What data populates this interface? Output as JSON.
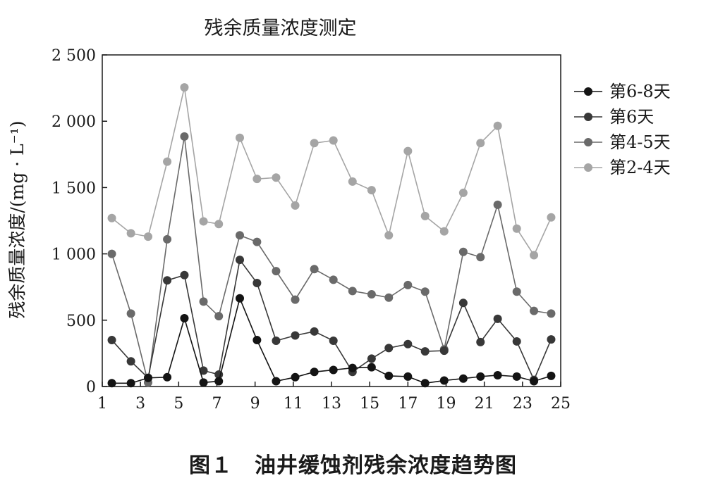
{
  "figure": {
    "caption": "图１　油井缓蚀剂残余浓度趋势图"
  },
  "chart_data": {
    "type": "line",
    "title": "残余质量浓度测定",
    "xlabel": "",
    "ylabel": "残余质量浓度/(mg · L⁻¹)",
    "xlim": [
      1,
      25
    ],
    "ylim": [
      0,
      2500
    ],
    "x_ticks": [
      "1",
      "3",
      "5",
      "7",
      "9",
      "11",
      "13",
      "15",
      "17",
      "19",
      "21",
      "23",
      "25"
    ],
    "y_ticks": [
      "0",
      "500",
      "1 000",
      "1 500",
      "2 000",
      "2 500"
    ],
    "legend_position": "right",
    "grid": false,
    "x": [
      1.5,
      2.5,
      3.4,
      4.4,
      5.3,
      6.3,
      7.1,
      8.2,
      9.1,
      10.1,
      11.1,
      12.1,
      13.1,
      14.1,
      15.1,
      16.0,
      17.0,
      17.9,
      18.9,
      19.9,
      20.8,
      21.7,
      22.7,
      23.6,
      24.5
    ],
    "series": [
      {
        "name": "第6-8天",
        "color": "#141414",
        "values": [
          25,
          25,
          65,
          70,
          515,
          30,
          40,
          665,
          350,
          40,
          70,
          110,
          125,
          140,
          145,
          80,
          75,
          25,
          45,
          60,
          75,
          85,
          75,
          40,
          80
        ]
      },
      {
        "name": "第6天",
        "color": "#383838",
        "values": [
          350,
          190,
          65,
          800,
          840,
          120,
          90,
          955,
          780,
          345,
          385,
          415,
          345,
          110,
          210,
          290,
          320,
          265,
          270,
          630,
          335,
          510,
          340,
          50,
          355
        ]
      },
      {
        "name": "第4-5天",
        "color": "#6a6a6a",
        "values": [
          1000,
          550,
          30,
          1110,
          1885,
          640,
          530,
          1140,
          1090,
          870,
          655,
          885,
          805,
          720,
          695,
          670,
          765,
          715,
          280,
          1015,
          975,
          1370,
          715,
          570,
          550
        ]
      },
      {
        "name": "第2-4天",
        "color": "#a5a5a5",
        "values": [
          1270,
          1155,
          1130,
          1695,
          2255,
          1245,
          1225,
          1875,
          1565,
          1575,
          1365,
          1835,
          1855,
          1545,
          1480,
          1140,
          1775,
          1285,
          1170,
          1460,
          1835,
          1965,
          1190,
          990,
          1275
        ]
      }
    ]
  }
}
